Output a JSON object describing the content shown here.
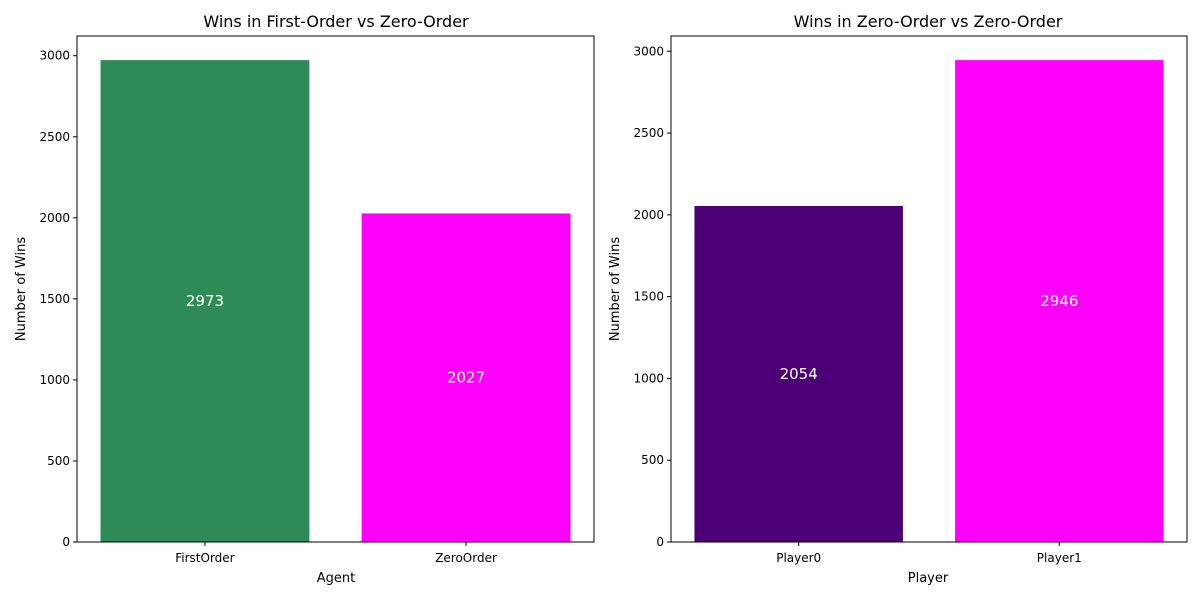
{
  "chart_data": [
    {
      "type": "bar",
      "title": "Wins in First-Order vs Zero-Order",
      "xlabel": "Agent",
      "ylabel": "Number of Wins",
      "categories": [
        "FirstOrder",
        "ZeroOrder"
      ],
      "values": [
        2973,
        2027
      ],
      "colors": [
        "#2e8b57",
        "#ff00ff"
      ],
      "value_label_color": "#ffffff",
      "ylim": [
        0,
        3121.65
      ],
      "yticks": [
        0,
        500,
        1000,
        1500,
        2000,
        2500,
        3000
      ],
      "grid": false,
      "legend": "none"
    },
    {
      "type": "bar",
      "title": "Wins in Zero-Order vs Zero-Order",
      "xlabel": "Player",
      "ylabel": "Number of Wins",
      "categories": [
        "Player0",
        "Player1"
      ],
      "values": [
        2054,
        2946
      ],
      "colors": [
        "#4b0076",
        "#ff00ff"
      ],
      "value_label_color": "#ffffff",
      "ylim": [
        0,
        3093.3
      ],
      "yticks": [
        0,
        500,
        1000,
        1500,
        2000,
        2500,
        3000
      ],
      "grid": false,
      "legend": "none"
    }
  ]
}
